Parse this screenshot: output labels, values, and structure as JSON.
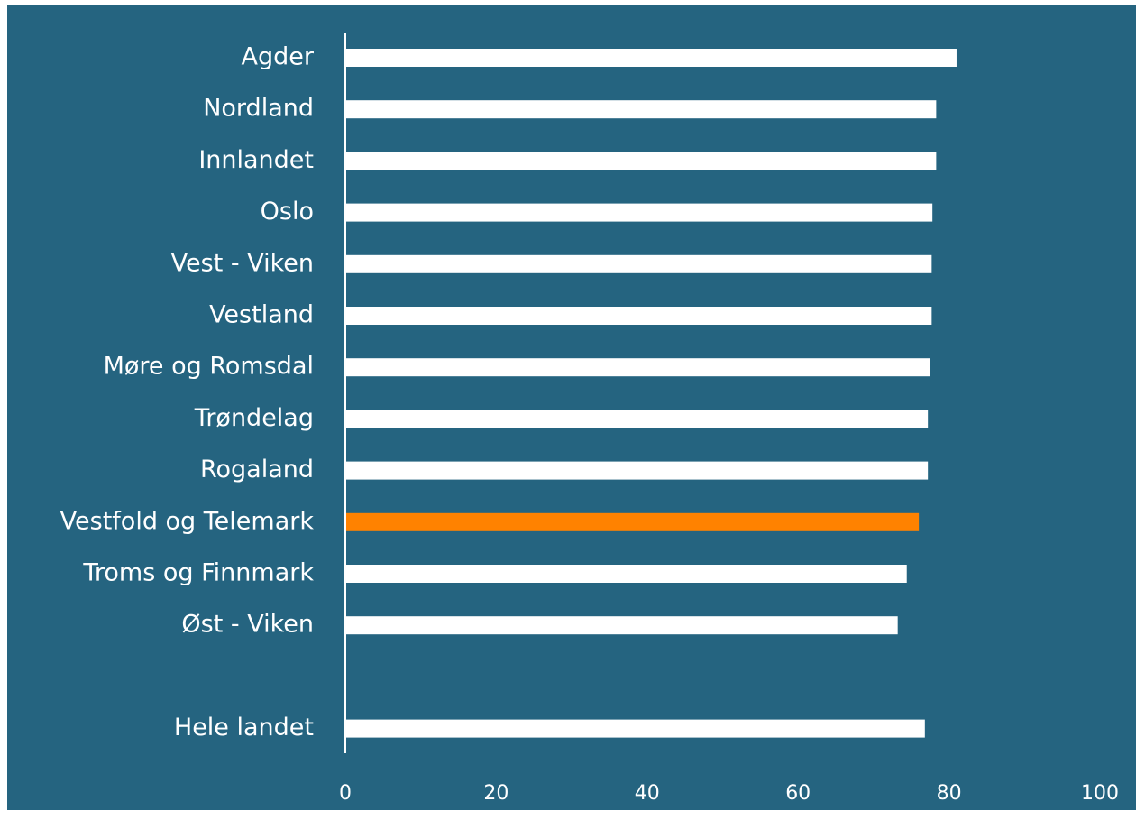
{
  "chart_data": {
    "type": "bar",
    "orientation": "horizontal",
    "categories": [
      "Agder",
      "Nordland",
      "Innlandet",
      "Oslo",
      "Vest - Viken",
      "Vestland",
      "Møre og Romsdal",
      "Trøndelag",
      "Rogaland",
      "Vestfold og Telemark",
      "Troms og Finnmark",
      "Øst - Viken",
      null,
      "Hele landet"
    ],
    "values": [
      81.0,
      78.3,
      78.3,
      77.8,
      77.7,
      77.7,
      77.5,
      77.2,
      77.2,
      76.0,
      74.4,
      73.2,
      null,
      76.8
    ],
    "colors": [
      "#ffffff",
      "#ffffff",
      "#ffffff",
      "#ffffff",
      "#ffffff",
      "#ffffff",
      "#ffffff",
      "#ffffff",
      "#ffffff",
      "#ff8200",
      "#ffffff",
      "#ffffff",
      null,
      "#ffffff"
    ],
    "xlim": [
      0,
      100
    ],
    "xticks": [
      0,
      20,
      40,
      60,
      80,
      100
    ],
    "grid": false,
    "background": "#256480"
  }
}
